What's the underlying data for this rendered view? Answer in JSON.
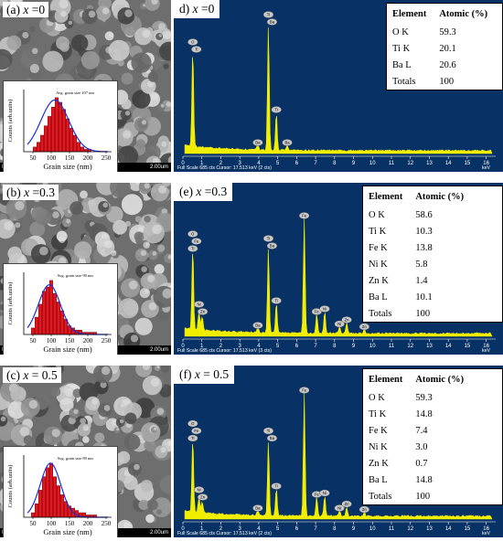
{
  "panels": [
    {
      "sem": {
        "label_prefix": "(a) ",
        "label_var": "x",
        "label_rest": " =0",
        "info_left": "IMS-NKL 5.0kV 5.0mm x20.0k SE(M)",
        "info_right": "2.00um",
        "seed": 11
      },
      "histogram": {
        "title": "Avg. grain size 107 nm",
        "xlabel": "Grain size (nm)",
        "ylabel": "Counts (arb.units)",
        "ticks": [
          "50",
          "100",
          "150",
          "200",
          "250"
        ],
        "xlim": [
          25,
          265
        ],
        "bins": [
          55,
          65,
          75,
          85,
          95,
          105,
          115,
          125,
          135,
          145,
          155,
          165,
          175,
          185,
          195,
          205
        ],
        "counts": [
          2,
          4,
          7,
          11,
          15,
          19,
          23,
          21,
          18,
          14,
          10,
          7,
          4,
          2,
          1,
          1
        ],
        "fit_center": 110,
        "fit_sigma": 38,
        "fit_peak": 22
      },
      "eds": {
        "label_prefix": "d) ",
        "label_var": "x",
        "label_rest": " =0",
        "footer": "Full Scale 685 cts  Cursor: 17.513 keV (2 cts)",
        "unit": "keV",
        "ticks": [
          "0",
          "1",
          "2",
          "3",
          "4",
          "5",
          "6",
          "7",
          "8",
          "9",
          "10",
          "11",
          "12",
          "13",
          "14",
          "15",
          "16"
        ],
        "peaks": [
          {
            "e": 0.52,
            "h": 0.72,
            "tags": [
              "O",
              "Ti"
            ]
          },
          {
            "e": 4.51,
            "h": 0.92,
            "tags": [
              "Ti",
              "Ba"
            ]
          },
          {
            "e": 4.93,
            "h": 0.28,
            "tags": [
              "Ti"
            ]
          },
          {
            "e": 3.95,
            "h": 0.04,
            "tags": [
              "Ba"
            ]
          },
          {
            "e": 5.5,
            "h": 0.04,
            "tags": [
              "Ba"
            ]
          }
        ]
      },
      "table": {
        "header": [
          "Element",
          "Atomic (%)"
        ],
        "rows": [
          [
            "O K",
            "59.3"
          ],
          [
            "Ti K",
            "20.1"
          ],
          [
            "Ba L",
            "20.6"
          ],
          [
            "Totals",
            "100"
          ]
        ]
      }
    },
    {
      "sem": {
        "label_prefix": "(b) ",
        "label_var": "x",
        "label_rest": " =0.3",
        "info_left": "IMS-NKL 5.0kV 5.0mm x20.0k SE(M)",
        "info_right": "2.00um",
        "seed": 29
      },
      "histogram": {
        "title": "Avg. grain size 90 nm",
        "xlabel": "Grain size (nm)",
        "ylabel": "Counts (arb.units)",
        "ticks": [
          "50",
          "100",
          "150",
          "200",
          "250"
        ],
        "xlim": [
          25,
          265
        ],
        "bins": [
          50,
          60,
          70,
          80,
          90,
          100,
          110,
          120,
          130,
          140,
          150,
          160,
          170,
          180,
          190,
          200,
          210,
          220
        ],
        "counts": [
          3,
          8,
          14,
          20,
          22,
          25,
          19,
          15,
          11,
          7,
          4,
          3,
          2,
          2,
          1,
          1,
          1,
          1
        ],
        "fit_center": 95,
        "fit_sigma": 30,
        "fit_peak": 23
      },
      "eds": {
        "label_prefix": "(e) ",
        "label_var": "x",
        "label_rest": " =0.3",
        "footer": "Full Scale 685 cts  Cursor: 17.513 keV (3 cts)",
        "unit": "keV",
        "ticks": [
          "0",
          "1",
          "2",
          "3",
          "4",
          "5",
          "6",
          "7",
          "8",
          "9",
          "10",
          "11",
          "12",
          "13",
          "14",
          "15",
          "16"
        ],
        "peaks": [
          {
            "e": 0.52,
            "h": 0.6,
            "tags": [
              "O",
              "Fe",
              "Ti"
            ]
          },
          {
            "e": 0.85,
            "h": 0.14,
            "tags": [
              "Ni",
              "Zn"
            ]
          },
          {
            "e": 1.02,
            "h": 0.1,
            "tags": []
          },
          {
            "e": 4.51,
            "h": 0.62,
            "tags": [
              "Ti",
              "Ba"
            ]
          },
          {
            "e": 4.93,
            "h": 0.22,
            "tags": [
              "Ti"
            ]
          },
          {
            "e": 3.95,
            "h": 0.04,
            "tags": [
              "Ba"
            ]
          },
          {
            "e": 6.4,
            "h": 0.84,
            "tags": [
              "Fe"
            ]
          },
          {
            "e": 7.06,
            "h": 0.14,
            "tags": [
              "Fe"
            ]
          },
          {
            "e": 7.48,
            "h": 0.16,
            "tags": [
              "Ni"
            ]
          },
          {
            "e": 8.26,
            "h": 0.05,
            "tags": [
              "Ni"
            ]
          },
          {
            "e": 8.64,
            "h": 0.08,
            "tags": [
              "Zn"
            ]
          },
          {
            "e": 9.57,
            "h": 0.03,
            "tags": [
              "Zn"
            ]
          }
        ]
      },
      "table": {
        "header": [
          "Element",
          "Atomic (%)"
        ],
        "rows": [
          [
            "O K",
            "58.6"
          ],
          [
            "Ti K",
            "10.3"
          ],
          [
            "Fe K",
            "13.8"
          ],
          [
            "Ni K",
            "5.8"
          ],
          [
            "Zn K",
            "1.4"
          ],
          [
            "Ba L",
            "10.1"
          ],
          [
            "Totals",
            "100"
          ]
        ]
      }
    },
    {
      "sem": {
        "label_prefix": "(c) ",
        "label_var": "x",
        "label_rest": " = 0.5",
        "info_left": "IMS-NKL 5.0kV 5.1mm x20.0k SE(M)",
        "info_right": "2.00um",
        "seed": 53
      },
      "histogram": {
        "title": "Avg. grain size 89 nm",
        "xlabel": "Grain size (nm)",
        "ylabel": "Counts (arb.units)",
        "ticks": [
          "50",
          "100",
          "150",
          "200",
          "250"
        ],
        "xlim": [
          25,
          265
        ],
        "bins": [
          50,
          60,
          70,
          80,
          90,
          100,
          110,
          120,
          130,
          140,
          150,
          160,
          170,
          180,
          190,
          200,
          210,
          220
        ],
        "counts": [
          2,
          6,
          12,
          18,
          22,
          24,
          18,
          14,
          10,
          7,
          5,
          4,
          3,
          2,
          2,
          1,
          1,
          1
        ],
        "fit_center": 98,
        "fit_sigma": 28,
        "fit_peak": 24
      },
      "eds": {
        "label_prefix": "(f) ",
        "label_var": "x",
        "label_rest": " = 0.5",
        "footer": "Full Scale 685 cts  Cursor: 17.513 keV (2 cts)",
        "unit": "keV",
        "ticks": [
          "0",
          "1",
          "2",
          "3",
          "4",
          "5",
          "6",
          "7",
          "8",
          "9",
          "10",
          "11",
          "12",
          "13",
          "14",
          "15",
          "16"
        ],
        "peaks": [
          {
            "e": 0.52,
            "h": 0.55,
            "tags": [
              "O",
              "Fe",
              "Ti"
            ]
          },
          {
            "e": 0.85,
            "h": 0.12,
            "tags": [
              "Ni",
              "Zn"
            ]
          },
          {
            "e": 1.02,
            "h": 0.08,
            "tags": []
          },
          {
            "e": 4.51,
            "h": 0.55,
            "tags": [
              "Ti",
              "Ba"
            ]
          },
          {
            "e": 4.93,
            "h": 0.2,
            "tags": [
              "Ti"
            ]
          },
          {
            "e": 3.95,
            "h": 0.04,
            "tags": [
              "Ba"
            ]
          },
          {
            "e": 6.4,
            "h": 0.9,
            "tags": [
              "Fe"
            ]
          },
          {
            "e": 7.06,
            "h": 0.14,
            "tags": [
              "Fe"
            ]
          },
          {
            "e": 7.48,
            "h": 0.15,
            "tags": [
              "Ni"
            ]
          },
          {
            "e": 8.26,
            "h": 0.04,
            "tags": [
              "Ni"
            ]
          },
          {
            "e": 8.64,
            "h": 0.07,
            "tags": [
              "Zn"
            ]
          },
          {
            "e": 9.57,
            "h": 0.03,
            "tags": [
              "Zn"
            ]
          }
        ]
      },
      "table": {
        "header": [
          "Element",
          "Atomic (%)"
        ],
        "rows": [
          [
            "O K",
            "59.3"
          ],
          [
            "Ti K",
            "14.8"
          ],
          [
            "Fe K",
            "7.4"
          ],
          [
            "Ni K",
            "3.0"
          ],
          [
            "Zn K",
            "0.7"
          ],
          [
            "Ba L",
            "14.8"
          ],
          [
            "Totals",
            "100"
          ]
        ]
      }
    }
  ],
  "chart_data": [
    {
      "type": "bar",
      "panel": "a",
      "title": "Avg. grain size 107 nm",
      "xlabel": "Grain size (nm)",
      "ylabel": "Counts (arb.units)",
      "x": [
        55,
        65,
        75,
        85,
        95,
        105,
        115,
        125,
        135,
        145,
        155,
        165,
        175,
        185,
        195,
        205
      ],
      "values": [
        2,
        4,
        7,
        11,
        15,
        19,
        23,
        21,
        18,
        14,
        10,
        7,
        4,
        2,
        1,
        1
      ],
      "xlim": [
        25,
        265
      ]
    },
    {
      "type": "bar",
      "panel": "b",
      "title": "Avg. grain size 90 nm",
      "xlabel": "Grain size (nm)",
      "ylabel": "Counts (arb.units)",
      "x": [
        50,
        60,
        70,
        80,
        90,
        100,
        110,
        120,
        130,
        140,
        150,
        160,
        170,
        180,
        190,
        200,
        210,
        220
      ],
      "values": [
        3,
        8,
        14,
        20,
        22,
        25,
        19,
        15,
        11,
        7,
        4,
        3,
        2,
        2,
        1,
        1,
        1,
        1
      ],
      "xlim": [
        25,
        265
      ]
    },
    {
      "type": "bar",
      "panel": "c",
      "title": "Avg. grain size 89 nm",
      "xlabel": "Grain size (nm)",
      "ylabel": "Counts (arb.units)",
      "x": [
        50,
        60,
        70,
        80,
        90,
        100,
        110,
        120,
        130,
        140,
        150,
        160,
        170,
        180,
        190,
        200,
        210,
        220
      ],
      "values": [
        2,
        6,
        12,
        18,
        22,
        24,
        18,
        14,
        10,
        7,
        5,
        4,
        3,
        2,
        2,
        1,
        1,
        1
      ],
      "xlim": [
        25,
        265
      ]
    },
    {
      "type": "line",
      "panel": "d",
      "xlabel": "keV",
      "xlim": [
        0,
        16.5
      ],
      "peaks_keV": [
        0.52,
        4.51,
        4.93,
        3.95,
        5.5
      ],
      "relative_heights": [
        0.72,
        0.92,
        0.28,
        0.04,
        0.04
      ]
    },
    {
      "type": "line",
      "panel": "e",
      "xlabel": "keV",
      "xlim": [
        0,
        16.5
      ],
      "peaks_keV": [
        0.52,
        0.85,
        1.02,
        4.51,
        4.93,
        3.95,
        6.4,
        7.06,
        7.48,
        8.26,
        8.64,
        9.57
      ],
      "relative_heights": [
        0.6,
        0.14,
        0.1,
        0.62,
        0.22,
        0.04,
        0.84,
        0.14,
        0.16,
        0.05,
        0.08,
        0.03
      ]
    },
    {
      "type": "line",
      "panel": "f",
      "xlabel": "keV",
      "xlim": [
        0,
        16.5
      ],
      "peaks_keV": [
        0.52,
        0.85,
        1.02,
        4.51,
        4.93,
        3.95,
        6.4,
        7.06,
        7.48,
        8.26,
        8.64,
        9.57
      ],
      "relative_heights": [
        0.55,
        0.12,
        0.08,
        0.55,
        0.2,
        0.04,
        0.9,
        0.14,
        0.15,
        0.04,
        0.07,
        0.03
      ]
    }
  ]
}
